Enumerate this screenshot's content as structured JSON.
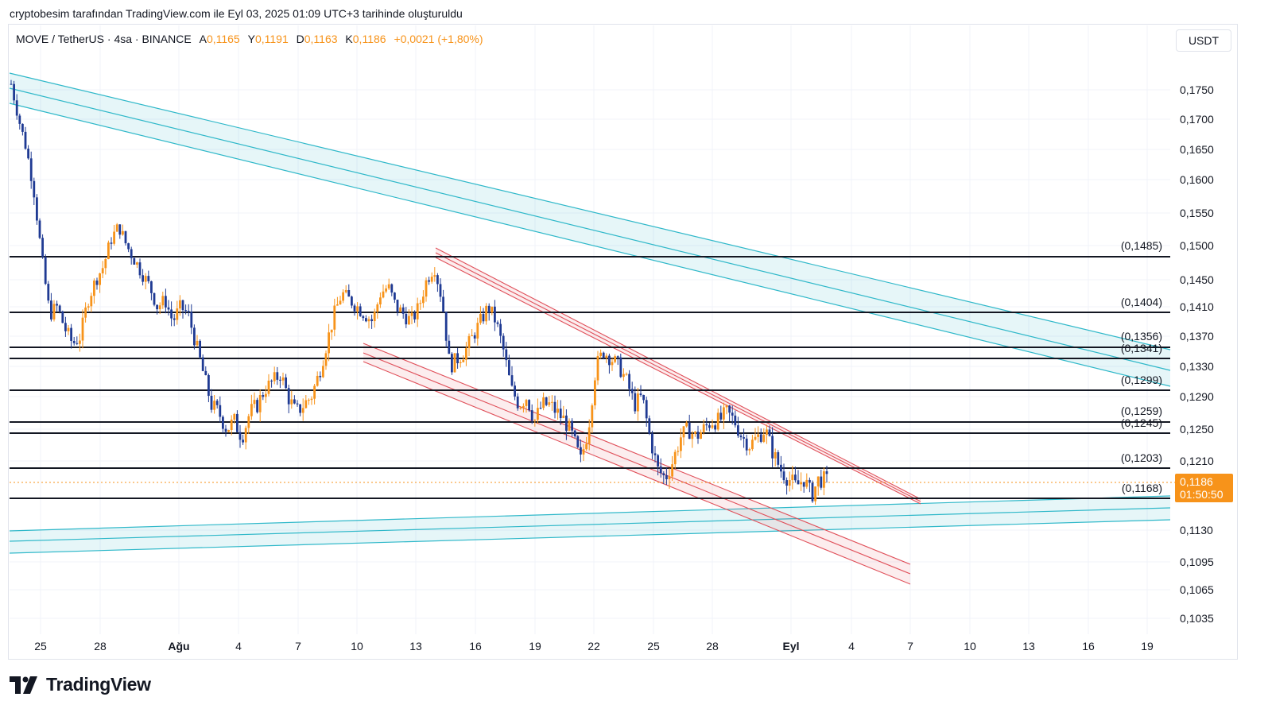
{
  "header": {
    "title": "cryptobesim tarafından TradingView.com ile Eyl 03, 2025 01:09 UTC+3 tarihinde oluşturuldu"
  },
  "legend": {
    "symbol": "MOVE / TetherUS · 4sa · BINANCE",
    "open_label": "A",
    "open": "0,1165",
    "high_label": "Y",
    "high": "0,1191",
    "low_label": "D",
    "low": "0,1163",
    "close_label": "K",
    "close": "0,1186",
    "change": "+0,0021 (+1,80%)"
  },
  "currency_button": {
    "label": "USDT"
  },
  "price_tag": {
    "price": "0,1186",
    "countdown": "01:50:50",
    "color": "#f7931a"
  },
  "colors": {
    "up": "#f7931a",
    "down": "#1f3a93",
    "channel_cyan": "#2fb8c9",
    "channel_red": "#e0505a",
    "level": "#131722"
  },
  "chart_data": {
    "type": "candlestick",
    "symbol": "MOVE / TetherUS",
    "interval": "4sa",
    "exchange": "BINANCE",
    "y_ticks": [
      "0,1750",
      "0,1700",
      "0,1650",
      "0,1600",
      "0,1550",
      "0,1500",
      "0,1450",
      "0,1410",
      "0,1370",
      "0,1330",
      "0,1290",
      "0,1250",
      "0,1210",
      "0,1130",
      "0,1095",
      "0,1065",
      "0,1035"
    ],
    "x_ticks": [
      "25",
      "28",
      "Ağu",
      "4",
      "7",
      "10",
      "13",
      "16",
      "19",
      "22",
      "25",
      "28",
      "Eyl",
      "4",
      "7",
      "10",
      "13",
      "16",
      "19"
    ],
    "bold_x_ticks": [
      "Ağu",
      "Eyl"
    ],
    "horizontal_levels": [
      "(0,1485)",
      "(0,1404)",
      "(0,1356)",
      "(0,1341)",
      "(0,1299)",
      "(0,1259)",
      "(0,1245)",
      "(0,1203)",
      "(0,1168)"
    ],
    "current_price": 0.1186,
    "close_series": [
      0.176,
      0.17,
      0.165,
      0.158,
      0.148,
      0.14,
      0.141,
      0.138,
      0.136,
      0.137,
      0.142,
      0.145,
      0.147,
      0.151,
      0.153,
      0.15,
      0.148,
      0.146,
      0.144,
      0.141,
      0.142,
      0.139,
      0.141,
      0.14,
      0.136,
      0.132,
      0.128,
      0.127,
      0.125,
      0.126,
      0.124,
      0.127,
      0.128,
      0.13,
      0.131,
      0.132,
      0.129,
      0.127,
      0.128,
      0.129,
      0.132,
      0.136,
      0.14,
      0.143,
      0.142,
      0.141,
      0.14,
      0.139,
      0.143,
      0.144,
      0.141,
      0.14,
      0.139,
      0.141,
      0.145,
      0.147,
      0.142,
      0.133,
      0.134,
      0.135,
      0.137,
      0.139,
      0.141,
      0.139,
      0.135,
      0.13,
      0.128,
      0.129,
      0.126,
      0.128,
      0.128,
      0.127,
      0.126,
      0.124,
      0.121,
      0.125,
      0.133,
      0.135,
      0.134,
      0.133,
      0.131,
      0.128,
      0.129,
      0.124,
      0.12,
      0.119,
      0.121,
      0.124,
      0.125,
      0.124,
      0.125,
      0.126,
      0.126,
      0.127,
      0.126,
      0.124,
      0.123,
      0.124,
      0.125,
      0.122,
      0.12,
      0.119,
      0.118,
      0.119,
      0.117,
      0.119,
      0.1186
    ]
  }
}
